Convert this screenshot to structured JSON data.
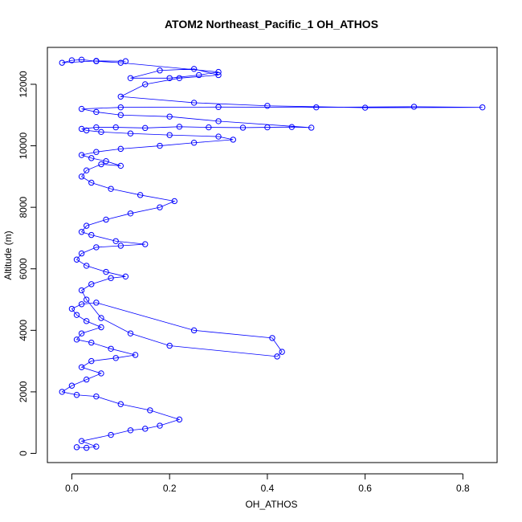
{
  "chart_data": {
    "type": "scatter",
    "title": "ATOM2 Northeast_Pacific_1 OH_ATHOS",
    "xlabel": "OH_ATHOS",
    "ylabel": "Altitude (m)",
    "xlim": [
      -0.05,
      0.87
    ],
    "ylim": [
      -300,
      13200
    ],
    "x_ticks": [
      0.0,
      0.2,
      0.4,
      0.6,
      0.8
    ],
    "x_tick_labels": [
      "0.0",
      "0.2",
      "0.4",
      "0.6",
      "0.8"
    ],
    "y_ticks": [
      0,
      2000,
      4000,
      6000,
      8000,
      10000,
      12000
    ],
    "y_tick_labels": [
      "0",
      "2000",
      "4000",
      "6000",
      "8000",
      "10000",
      "12000"
    ],
    "marker": "open-circle",
    "connect_points": true,
    "grid": false,
    "legend": "none",
    "colors": {
      "series": "#0000ff",
      "axis": "#000000",
      "background": "#ffffff"
    },
    "series": [
      {
        "x": [
          0.01,
          0.03,
          0.05,
          0.02,
          0.08,
          0.12,
          0.15,
          0.18,
          0.22,
          0.16,
          0.1,
          0.05,
          0.01,
          -0.02,
          0.0,
          0.03,
          0.06,
          0.02,
          0.04,
          0.09,
          0.13,
          0.08,
          0.04,
          0.01,
          0.02,
          0.06,
          0.03,
          0.01,
          0.0,
          0.02,
          0.05,
          0.25,
          0.41,
          0.43,
          0.42,
          0.2,
          0.12,
          0.06,
          0.03,
          0.02,
          0.04,
          0.08,
          0.11,
          0.07,
          0.03,
          0.01,
          0.02,
          0.05,
          0.1,
          0.15,
          0.09,
          0.04,
          0.02,
          0.03,
          0.07,
          0.12,
          0.18,
          0.21,
          0.14,
          0.08,
          0.04,
          0.02,
          0.03,
          0.06,
          0.1,
          0.07,
          0.04,
          0.02,
          0.05,
          0.1,
          0.18,
          0.25,
          0.33,
          0.3,
          0.2,
          0.12,
          0.06,
          0.03,
          0.02,
          0.05,
          0.09,
          0.15,
          0.22,
          0.28,
          0.35,
          0.4,
          0.45,
          0.49,
          0.3,
          0.2,
          0.1,
          0.05,
          0.02,
          0.1,
          0.3,
          0.5,
          0.7,
          0.84,
          0.6,
          0.4,
          0.25,
          0.1,
          0.15,
          0.22,
          0.3,
          0.25,
          0.18,
          0.12,
          0.2,
          0.26,
          0.3,
          0.1,
          0.05,
          0.02,
          0.0,
          -0.02,
          0.05,
          0.11
        ],
        "y": [
          200,
          180,
          220,
          400,
          600,
          750,
          800,
          900,
          1100,
          1400,
          1600,
          1850,
          1900,
          2000,
          2200,
          2400,
          2600,
          2800,
          3000,
          3100,
          3200,
          3400,
          3600,
          3700,
          3900,
          4100,
          4300,
          4500,
          4700,
          4850,
          4900,
          4000,
          3750,
          3300,
          3150,
          3500,
          3900,
          4400,
          5000,
          5300,
          5500,
          5700,
          5750,
          5900,
          6100,
          6300,
          6500,
          6700,
          6750,
          6800,
          6900,
          7100,
          7200,
          7400,
          7600,
          7800,
          8000,
          8200,
          8400,
          8600,
          8800,
          9000,
          9200,
          9400,
          9350,
          9500,
          9600,
          9700,
          9800,
          9900,
          10000,
          10100,
          10200,
          10300,
          10350,
          10400,
          10450,
          10500,
          10550,
          10600,
          10600,
          10580,
          10620,
          10600,
          10590,
          10600,
          10610,
          10590,
          10800,
          10950,
          11000,
          11100,
          11200,
          11250,
          11260,
          11250,
          11270,
          11250,
          11240,
          11300,
          11400,
          11600,
          12000,
          12200,
          12300,
          12500,
          12450,
          12200,
          12200,
          12300,
          12400,
          12700,
          12750,
          12800,
          12780,
          12700,
          12760,
          12750
        ]
      }
    ]
  }
}
